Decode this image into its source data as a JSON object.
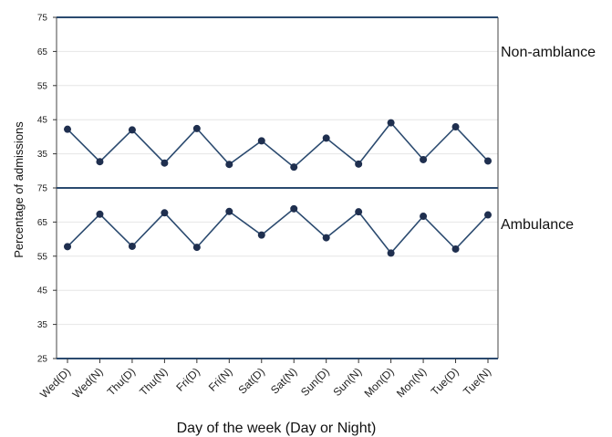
{
  "chart_data": {
    "type": "line",
    "xlabel": "Day of the week (Day or Night)",
    "ylabel": "Percentage of admissions",
    "categories": [
      "Wed(D)",
      "Wed(N)",
      "Thu(D)",
      "Thu(N)",
      "Fri(D)",
      "Fri(N)",
      "Sat(D)",
      "Sat(N)",
      "Sun(D)",
      "Sun(N)",
      "Mon(D)",
      "Mon(N)",
      "Tue(D)",
      "Tue(N)"
    ],
    "grid": true,
    "colors": {
      "line": "#2b4a6f",
      "marker": "#1f2f4f",
      "frame": "#2b4a6f",
      "grid": "#e6e6e6"
    },
    "panels": [
      {
        "label": "Non-amblance",
        "ylim": [
          25,
          75
        ],
        "yticks": [
          35,
          45,
          55,
          65,
          75
        ],
        "values": [
          42.2,
          32.7,
          42.0,
          32.3,
          42.4,
          31.9,
          38.8,
          31.1,
          39.6,
          32.0,
          44.1,
          33.3,
          42.9,
          32.9
        ]
      },
      {
        "label": "Ambulance",
        "ylim": [
          25,
          75
        ],
        "yticks": [
          25,
          35,
          45,
          55,
          65,
          75
        ],
        "values": [
          57.8,
          67.3,
          57.9,
          67.7,
          57.6,
          68.1,
          61.2,
          68.9,
          60.4,
          68.0,
          55.9,
          66.7,
          57.1,
          67.1
        ]
      }
    ]
  }
}
